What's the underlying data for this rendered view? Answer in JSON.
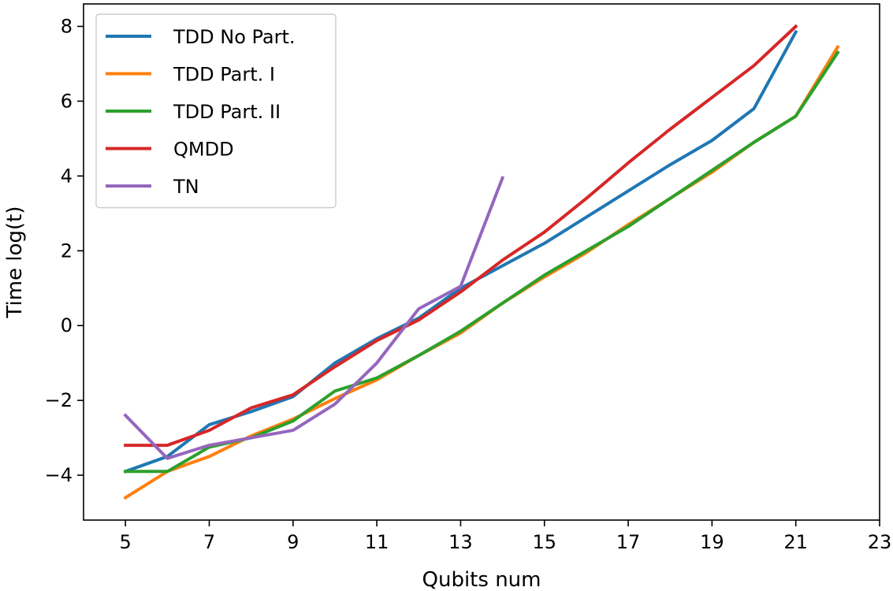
{
  "chart_data": {
    "type": "line",
    "xlabel": "Qubits num",
    "ylabel": "Time log(t)",
    "xlim": [
      4.0,
      23.0
    ],
    "ylim": [
      -5.2,
      8.6
    ],
    "xticks": [
      5,
      7,
      9,
      11,
      13,
      15,
      17,
      19,
      21,
      23
    ],
    "yticks": [
      -4,
      -2,
      0,
      2,
      4,
      6,
      8
    ],
    "xtick_labels": [
      "5",
      "7",
      "9",
      "11",
      "13",
      "15",
      "17",
      "19",
      "21",
      "23"
    ],
    "ytick_labels": [
      "−4",
      "−2",
      "0",
      "2",
      "4",
      "6",
      "8"
    ],
    "grid": false,
    "legend": {
      "position": "top-left"
    },
    "series": [
      {
        "name": "TDD No Part.",
        "color": "#1f77b4",
        "x": [
          5,
          6,
          7,
          8,
          9,
          10,
          11,
          12,
          13,
          14,
          15,
          16,
          17,
          18,
          19,
          20,
          21
        ],
        "y": [
          -3.9,
          -3.5,
          -2.65,
          -2.3,
          -1.9,
          -1.0,
          -0.35,
          0.2,
          1.0,
          1.6,
          2.2,
          2.9,
          3.6,
          4.3,
          4.95,
          5.8,
          7.85
        ]
      },
      {
        "name": "TDD Part. I",
        "color": "#ff7f0e",
        "x": [
          5,
          6,
          7,
          8,
          9,
          10,
          11,
          12,
          13,
          14,
          15,
          16,
          17,
          18,
          19,
          20,
          21,
          22
        ],
        "y": [
          -4.6,
          -3.9,
          -3.5,
          -2.95,
          -2.5,
          -1.95,
          -1.45,
          -0.8,
          -0.2,
          0.6,
          1.3,
          1.95,
          2.7,
          3.4,
          4.1,
          4.9,
          5.6,
          7.45
        ]
      },
      {
        "name": "TDD Part. II",
        "color": "#2ca02c",
        "x": [
          5,
          6,
          7,
          8,
          9,
          10,
          11,
          12,
          13,
          14,
          15,
          16,
          17,
          18,
          19,
          20,
          21,
          22
        ],
        "y": [
          -3.9,
          -3.9,
          -3.25,
          -3.0,
          -2.55,
          -1.75,
          -1.4,
          -0.8,
          -0.15,
          0.6,
          1.35,
          2.0,
          2.65,
          3.4,
          4.15,
          4.9,
          5.6,
          7.3
        ]
      },
      {
        "name": "QMDD",
        "color": "#d62728",
        "x": [
          5,
          6,
          7,
          8,
          9,
          10,
          11,
          12,
          13,
          14,
          15,
          16,
          17,
          18,
          19,
          20,
          21
        ],
        "y": [
          -3.2,
          -3.2,
          -2.8,
          -2.2,
          -1.85,
          -1.1,
          -0.4,
          0.15,
          0.9,
          1.75,
          2.5,
          3.4,
          4.35,
          5.25,
          6.1,
          6.95,
          8.0
        ]
      },
      {
        "name": "TN",
        "color": "#9467bd",
        "x": [
          5,
          6,
          7,
          8,
          9,
          10,
          11,
          12,
          13,
          14
        ],
        "y": [
          -2.4,
          -3.55,
          -3.2,
          -3.0,
          -2.8,
          -2.1,
          -1.0,
          0.45,
          1.05,
          3.95
        ]
      }
    ]
  }
}
